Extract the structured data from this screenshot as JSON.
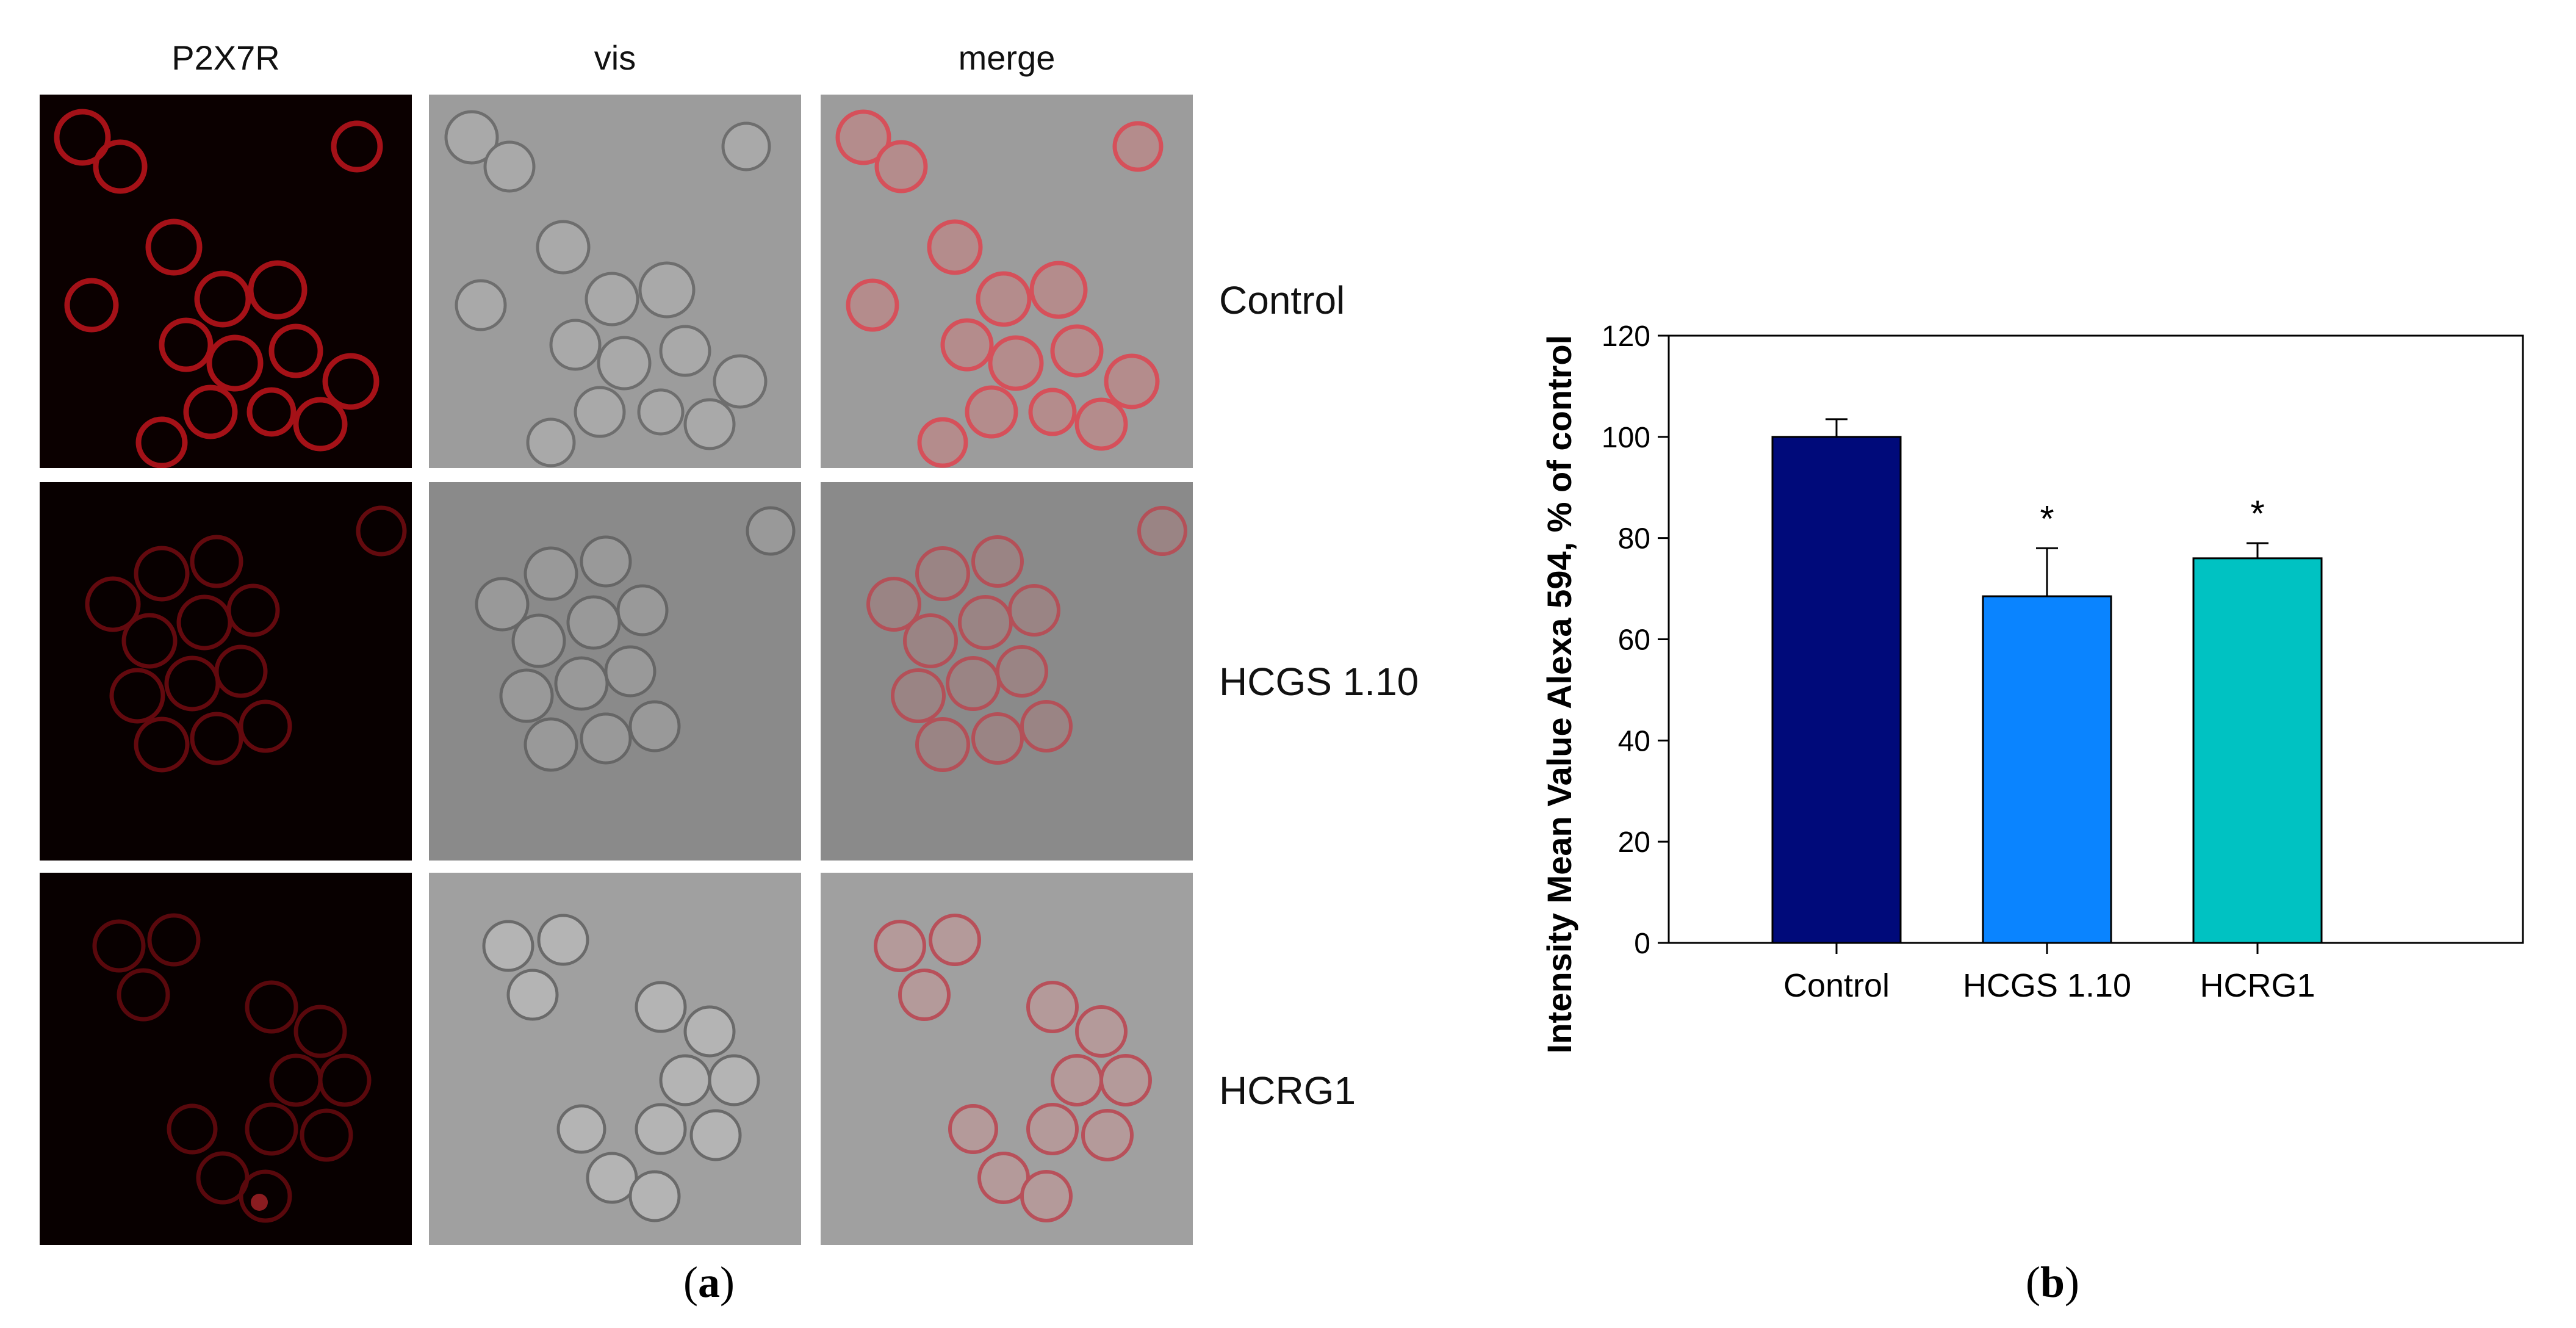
{
  "micrograph": {
    "columns": [
      "P2X7R",
      "vis",
      "merge"
    ],
    "rows": [
      "Control",
      "HCGS 1.10",
      "HCRG1"
    ],
    "caption": "a"
  },
  "chart_caption": "b",
  "chart_data": {
    "type": "bar",
    "categories": [
      "Control",
      "HCGS 1.10",
      "HCRG1"
    ],
    "values": [
      100,
      68.5,
      76
    ],
    "errors": [
      3.5,
      9.5,
      3
    ],
    "significance": [
      "",
      "*",
      "*"
    ],
    "colors": [
      "#000a7a",
      "#0a84ff",
      "#00c2c2"
    ],
    "ylabel": "Intensity Mean Value Alexa 594, % of control",
    "xlabel": "",
    "ylim": [
      0,
      120
    ],
    "yticks": [
      0,
      20,
      40,
      60,
      80,
      100,
      120
    ],
    "grid": false,
    "legend": "none"
  }
}
